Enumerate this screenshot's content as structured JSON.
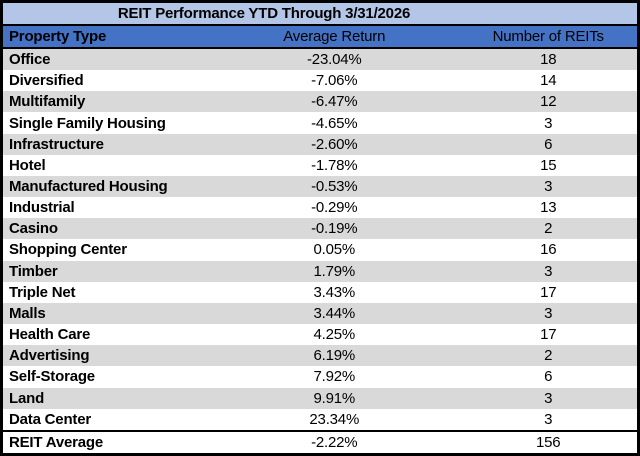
{
  "table": {
    "title": "REIT Performance YTD Through 3/31/2026",
    "columns": [
      "Property Type",
      "Average Return",
      "Number of REITs"
    ],
    "rows": [
      {
        "property_type": "Office",
        "average_return": "-23.04%",
        "number_of_reits": "18"
      },
      {
        "property_type": "Diversified",
        "average_return": "-7.06%",
        "number_of_reits": "14"
      },
      {
        "property_type": "Multifamily",
        "average_return": "-6.47%",
        "number_of_reits": "12"
      },
      {
        "property_type": "Single Family Housing",
        "average_return": "-4.65%",
        "number_of_reits": "3"
      },
      {
        "property_type": "Infrastructure",
        "average_return": "-2.60%",
        "number_of_reits": "6"
      },
      {
        "property_type": "Hotel",
        "average_return": "-1.78%",
        "number_of_reits": "15"
      },
      {
        "property_type": "Manufactured Housing",
        "average_return": "-0.53%",
        "number_of_reits": "3"
      },
      {
        "property_type": "Industrial",
        "average_return": "-0.29%",
        "number_of_reits": "13"
      },
      {
        "property_type": "Casino",
        "average_return": "-0.19%",
        "number_of_reits": "2"
      },
      {
        "property_type": "Shopping Center",
        "average_return": "0.05%",
        "number_of_reits": "16"
      },
      {
        "property_type": "Timber",
        "average_return": "1.79%",
        "number_of_reits": "3"
      },
      {
        "property_type": "Triple Net",
        "average_return": "3.43%",
        "number_of_reits": "17"
      },
      {
        "property_type": "Malls",
        "average_return": "3.44%",
        "number_of_reits": "3"
      },
      {
        "property_type": "Health Care",
        "average_return": "4.25%",
        "number_of_reits": "17"
      },
      {
        "property_type": "Advertising",
        "average_return": "6.19%",
        "number_of_reits": "2"
      },
      {
        "property_type": "Self-Storage",
        "average_return": "7.92%",
        "number_of_reits": "6"
      },
      {
        "property_type": "Land",
        "average_return": "9.91%",
        "number_of_reits": "3"
      },
      {
        "property_type": "Data Center",
        "average_return": "23.34%",
        "number_of_reits": "3"
      }
    ],
    "footer": {
      "property_type": "REIT Average",
      "average_return": "-2.22%",
      "number_of_reits": "156"
    }
  },
  "colors": {
    "title_bg": "#B4C6E7",
    "header_bg": "#4472C4",
    "row_alt_bg": "#D9D9D9",
    "border": "#000000"
  },
  "chart_data": {
    "type": "table",
    "title": "REIT Performance YTD Through 3/31/2026",
    "columns": [
      "Property Type",
      "Average Return",
      "Number of REITs"
    ],
    "rows": [
      [
        "Office",
        "-23.04%",
        18
      ],
      [
        "Diversified",
        "-7.06%",
        14
      ],
      [
        "Multifamily",
        "-6.47%",
        12
      ],
      [
        "Single Family Housing",
        "-4.65%",
        3
      ],
      [
        "Infrastructure",
        "-2.60%",
        6
      ],
      [
        "Hotel",
        "-1.78%",
        15
      ],
      [
        "Manufactured Housing",
        "-0.53%",
        3
      ],
      [
        "Industrial",
        "-0.29%",
        13
      ],
      [
        "Casino",
        "-0.19%",
        2
      ],
      [
        "Shopping Center",
        "0.05%",
        16
      ],
      [
        "Timber",
        "1.79%",
        3
      ],
      [
        "Triple Net",
        "3.43%",
        17
      ],
      [
        "Malls",
        "3.44%",
        3
      ],
      [
        "Health Care",
        "4.25%",
        17
      ],
      [
        "Advertising",
        "6.19%",
        2
      ],
      [
        "Self-Storage",
        "7.92%",
        6
      ],
      [
        "Land",
        "9.91%",
        3
      ],
      [
        "Data Center",
        "23.34%",
        3
      ],
      [
        "REIT Average",
        "-2.22%",
        156
      ]
    ],
    "series": [
      {
        "name": "Average Return (%)",
        "values": [
          -23.04,
          -7.06,
          -6.47,
          -4.65,
          -2.6,
          -1.78,
          -0.53,
          -0.29,
          -0.19,
          0.05,
          1.79,
          3.43,
          3.44,
          4.25,
          6.19,
          7.92,
          9.91,
          23.34
        ]
      },
      {
        "name": "Number of REITs",
        "values": [
          18,
          14,
          12,
          3,
          6,
          15,
          3,
          13,
          2,
          16,
          3,
          17,
          3,
          17,
          2,
          6,
          3,
          3
        ]
      }
    ],
    "categories": [
      "Office",
      "Diversified",
      "Multifamily",
      "Single Family Housing",
      "Infrastructure",
      "Hotel",
      "Manufactured Housing",
      "Industrial",
      "Casino",
      "Shopping Center",
      "Timber",
      "Triple Net",
      "Malls",
      "Health Care",
      "Advertising",
      "Self-Storage",
      "Land",
      "Data Center"
    ],
    "summary_row": {
      "label": "REIT Average",
      "average_return_pct": -2.22,
      "number_of_reits": 156
    }
  }
}
